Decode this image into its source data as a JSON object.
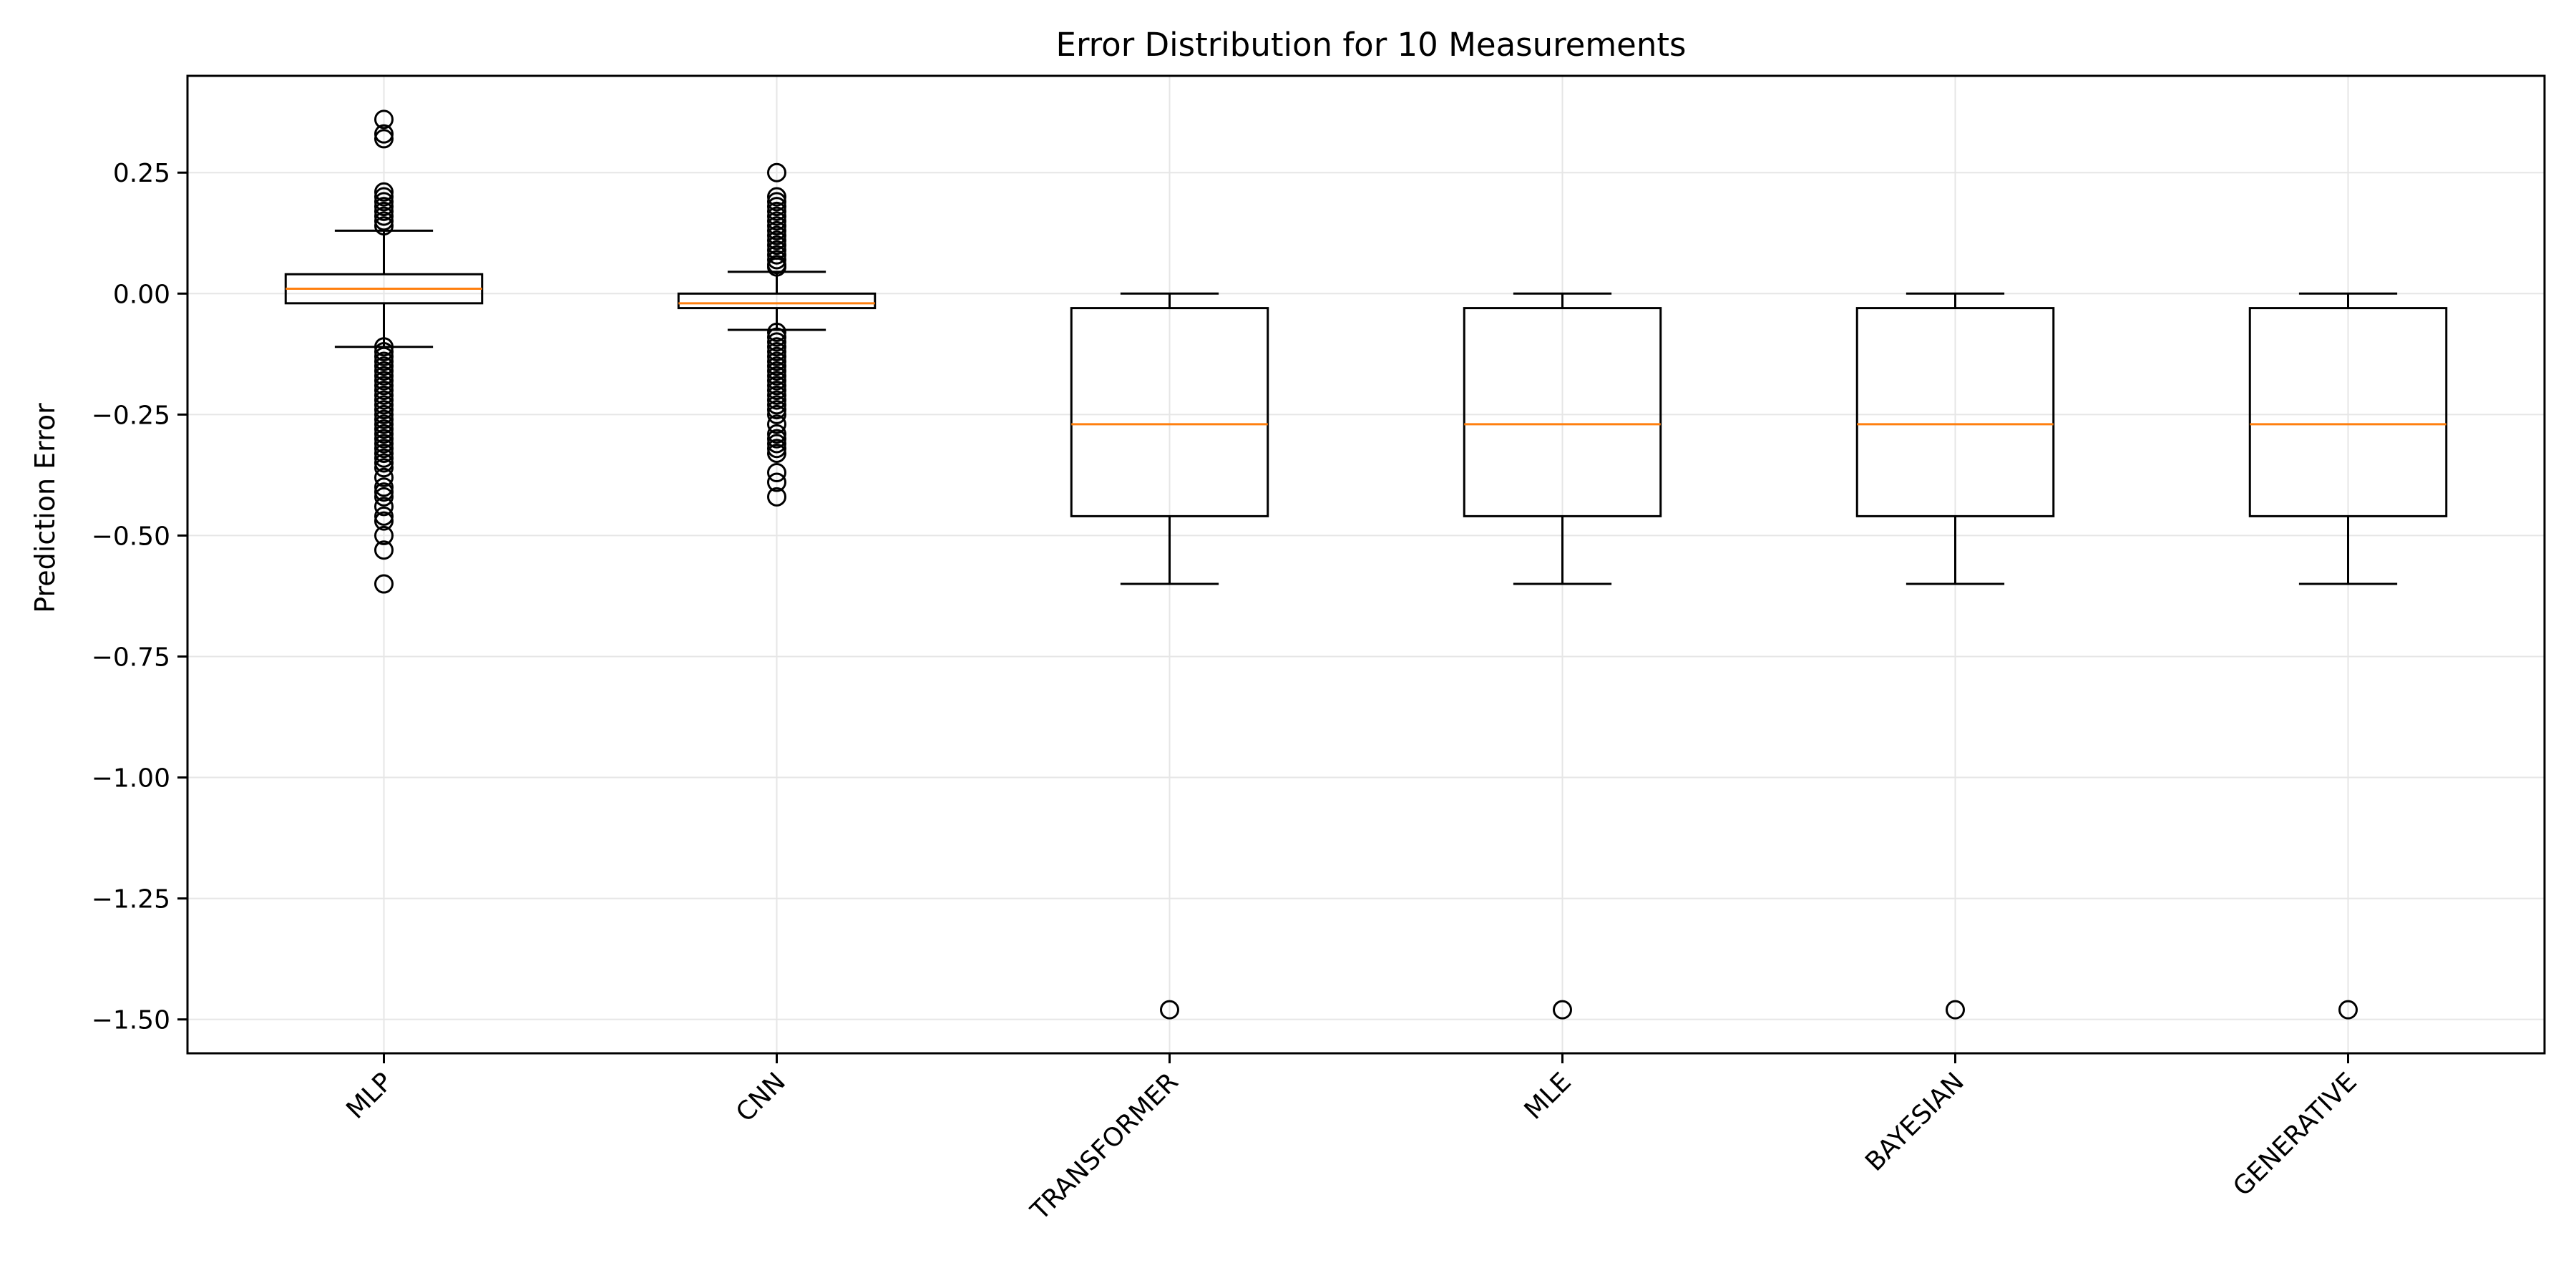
{
  "chart_data": {
    "type": "boxplot",
    "title": "Error Distribution for 10 Measurements",
    "xlabel": "",
    "ylabel": "Prediction Error",
    "ylim": [
      -1.57,
      0.45
    ],
    "yticks": [
      0.25,
      0.0,
      -0.25,
      -0.5,
      -0.75,
      -1.0,
      -1.25,
      -1.5
    ],
    "ytick_labels": [
      "0.25",
      "0.00",
      "−0.25",
      "−0.50",
      "−0.75",
      "−1.00",
      "−1.25",
      "−1.50"
    ],
    "grid": true,
    "colors": {
      "box": "#000000",
      "median": "#ff7f0e",
      "grid": "#e6e6e6"
    },
    "categories": [
      "MLP",
      "CNN",
      "TRANSFORMER",
      "MLE",
      "BAYESIAN",
      "GENERATIVE"
    ],
    "boxes": [
      {
        "name": "MLP",
        "whisker_low": -0.11,
        "q1": -0.02,
        "median": 0.01,
        "q3": 0.04,
        "whisker_high": 0.13,
        "outliers": [
          0.36,
          0.33,
          0.32,
          0.21,
          0.2,
          0.19,
          0.18,
          0.17,
          0.16,
          0.15,
          0.14,
          -0.11,
          -0.12,
          -0.13,
          -0.14,
          -0.15,
          -0.16,
          -0.17,
          -0.18,
          -0.19,
          -0.2,
          -0.21,
          -0.22,
          -0.23,
          -0.24,
          -0.25,
          -0.26,
          -0.27,
          -0.28,
          -0.29,
          -0.3,
          -0.31,
          -0.32,
          -0.33,
          -0.34,
          -0.35,
          -0.36,
          -0.38,
          -0.4,
          -0.41,
          -0.42,
          -0.44,
          -0.46,
          -0.47,
          -0.5,
          -0.53,
          -0.6
        ]
      },
      {
        "name": "CNN",
        "whisker_low": -0.075,
        "q1": -0.03,
        "median": -0.02,
        "q3": 0.0,
        "whisker_high": 0.045,
        "outliers": [
          0.25,
          0.2,
          0.19,
          0.18,
          0.17,
          0.16,
          0.15,
          0.14,
          0.13,
          0.12,
          0.11,
          0.1,
          0.09,
          0.08,
          0.07,
          0.06,
          0.055,
          -0.08,
          -0.09,
          -0.1,
          -0.11,
          -0.12,
          -0.13,
          -0.14,
          -0.15,
          -0.16,
          -0.17,
          -0.18,
          -0.19,
          -0.2,
          -0.21,
          -0.22,
          -0.23,
          -0.24,
          -0.25,
          -0.27,
          -0.29,
          -0.3,
          -0.31,
          -0.32,
          -0.33,
          -0.37,
          -0.39,
          -0.42
        ]
      },
      {
        "name": "TRANSFORMER",
        "whisker_low": -0.6,
        "q1": -0.46,
        "median": -0.27,
        "q3": -0.03,
        "whisker_high": 0.0,
        "outliers": [
          -1.48
        ]
      },
      {
        "name": "MLE",
        "whisker_low": -0.6,
        "q1": -0.46,
        "median": -0.27,
        "q3": -0.03,
        "whisker_high": 0.0,
        "outliers": [
          -1.48
        ]
      },
      {
        "name": "BAYESIAN",
        "whisker_low": -0.6,
        "q1": -0.46,
        "median": -0.27,
        "q3": -0.03,
        "whisker_high": 0.0,
        "outliers": [
          -1.48
        ]
      },
      {
        "name": "GENERATIVE",
        "whisker_low": -0.6,
        "q1": -0.46,
        "median": -0.27,
        "q3": -0.03,
        "whisker_high": 0.0,
        "outliers": [
          -1.48
        ]
      }
    ]
  }
}
